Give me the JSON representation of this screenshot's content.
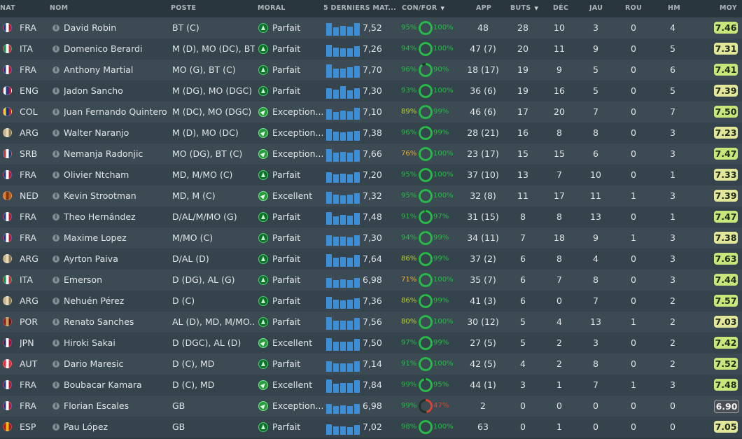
{
  "columns": {
    "nat": "NAT",
    "nom": "NOM",
    "poste": "POSTE",
    "moral": "MORAL",
    "form": "5 DERNIERS MAT...",
    "confor": "CON/FOR",
    "app": "APP",
    "buts": "BUTS",
    "dec": "DÉC",
    "jau": "JAU",
    "rou": "ROU",
    "hm": "HM",
    "moy": "MOY"
  },
  "colors": {
    "high": "#2bb84b",
    "mid": "#b8cf3a",
    "low": "#e2b13a",
    "bad": "#d94535",
    "bar": "#3c8ed6",
    "moy_high": "#c7e77a",
    "moy_mid": "#e3e79a",
    "moy_low": "#d7d9b9"
  },
  "icons": {
    "info": "info-icon",
    "morale": "morale-arrow-icon",
    "sort": "sort-desc-icon",
    "ring": "progress-ring-icon"
  },
  "players": [
    {
      "nat": "FRA",
      "name": "David Robin",
      "pos": "BT (C)",
      "moral": "Parfait",
      "moral_type": "up",
      "form": "7,52",
      "form_bars": [
        0.8,
        0.55,
        0.65,
        0.6,
        0.8
      ],
      "con": "95%",
      "for": "100%",
      "con_val": 95,
      "for_val": 100,
      "app": "48",
      "buts": "28",
      "dec": "10",
      "jau": "3",
      "rou": "0",
      "hm": "4",
      "moy": "7.46",
      "flag": [
        "#1a3c8f",
        "#ffffff",
        "#c8102e"
      ]
    },
    {
      "nat": "ITA",
      "name": "Domenico Berardi",
      "pos": "M (D), MO (DC), BT...",
      "moral": "Parfait",
      "moral_type": "up",
      "form": "7,26",
      "form_bars": [
        0.75,
        0.6,
        0.55,
        0.55,
        0.7
      ],
      "con": "94%",
      "for": "100%",
      "con_val": 94,
      "for_val": 100,
      "app": "47 (7)",
      "buts": "20",
      "dec": "11",
      "jau": "9",
      "rou": "0",
      "hm": "5",
      "moy": "7.31",
      "flag": [
        "#009246",
        "#ffffff",
        "#ce2b37"
      ]
    },
    {
      "nat": "FRA",
      "name": "Anthony Martial",
      "pos": "MO (G), BT (C)",
      "moral": "Parfait",
      "moral_type": "up",
      "form": "7,70",
      "form_bars": [
        0.85,
        0.6,
        0.6,
        0.7,
        0.75
      ],
      "con": "96%",
      "for": "90%",
      "con_val": 96,
      "for_val": 90,
      "app": "18 (17)",
      "buts": "19",
      "dec": "9",
      "jau": "5",
      "rou": "0",
      "hm": "6",
      "moy": "7.41",
      "flag": [
        "#1a3c8f",
        "#ffffff",
        "#c8102e"
      ]
    },
    {
      "nat": "ENG",
      "name": "Jadon Sancho",
      "pos": "M (DG), MO (DGC)",
      "moral": "Parfait",
      "moral_type": "up",
      "form": "7,30",
      "form_bars": [
        0.7,
        0.6,
        0.8,
        0.55,
        0.7
      ],
      "con": "93%",
      "for": "100%",
      "con_val": 93,
      "for_val": 100,
      "app": "36 (6)",
      "buts": "19",
      "dec": "16",
      "jau": "5",
      "rou": "0",
      "hm": "5",
      "moy": "7.39",
      "flag": [
        "#ffffff",
        "#1a3c8f",
        "#c8102e"
      ]
    },
    {
      "nat": "COL",
      "name": "Juan Fernando Quintero",
      "pos": "M (DC), MO (DGC)",
      "moral": "Exception...",
      "moral_type": "exc",
      "form": "7,10",
      "form_bars": [
        0.7,
        0.5,
        0.6,
        0.55,
        0.75
      ],
      "con": "89%",
      "for": "99%",
      "con_val": 89,
      "for_val": 99,
      "app": "46 (6)",
      "buts": "17",
      "dec": "20",
      "jau": "7",
      "rou": "0",
      "hm": "7",
      "moy": "7.50",
      "flag": [
        "#fcd116",
        "#003893",
        "#ce1126"
      ]
    },
    {
      "nat": "ARG",
      "name": "Walter Naranjo",
      "pos": "M (D), MO (DC)",
      "moral": "Exception...",
      "moral_type": "exc",
      "form": "7,38",
      "form_bars": [
        0.75,
        0.6,
        0.55,
        0.6,
        0.65
      ],
      "con": "96%",
      "for": "99%",
      "con_val": 96,
      "for_val": 99,
      "app": "28 (21)",
      "buts": "16",
      "dec": "8",
      "jau": "8",
      "rou": "0",
      "hm": "3",
      "moy": "7.23",
      "flag": [
        "#c9b48a",
        "#e6d9b8",
        "#8a7650"
      ]
    },
    {
      "nat": "SRB",
      "name": "Nemanja Radonjic",
      "pos": "MO (DG), BT (C)",
      "moral": "Exception...",
      "moral_type": "exc",
      "form": "7,66",
      "form_bars": [
        0.8,
        0.6,
        0.65,
        0.6,
        0.75
      ],
      "con": "76%",
      "for": "100%",
      "con_val": 76,
      "for_val": 100,
      "app": "23 (17)",
      "buts": "15",
      "dec": "15",
      "jau": "6",
      "rou": "0",
      "hm": "3",
      "moy": "7.47",
      "flag": [
        "#c6363c",
        "#ffffff",
        "#0c4076"
      ]
    },
    {
      "nat": "FRA",
      "name": "Olivier Ntcham",
      "pos": "MD, M/MO (C)",
      "moral": "Parfait",
      "moral_type": "up",
      "form": "7,20",
      "form_bars": [
        0.7,
        0.55,
        0.6,
        0.55,
        0.7
      ],
      "con": "95%",
      "for": "100%",
      "con_val": 95,
      "for_val": 100,
      "app": "37 (10)",
      "buts": "13",
      "dec": "7",
      "jau": "10",
      "rou": "0",
      "hm": "1",
      "moy": "7.33",
      "flag": [
        "#1a3c8f",
        "#ffffff",
        "#c8102e"
      ]
    },
    {
      "nat": "NED",
      "name": "Kevin Strootman",
      "pos": "MD, M (C)",
      "moral": "Excellent",
      "moral_type": "exc",
      "form": "7,32",
      "form_bars": [
        0.75,
        0.6,
        0.55,
        0.6,
        0.7
      ],
      "con": "95%",
      "for": "100%",
      "con_val": 95,
      "for_val": 100,
      "app": "32 (8)",
      "buts": "11",
      "dec": "17",
      "jau": "11",
      "rou": "1",
      "hm": "3",
      "moy": "7.39",
      "flag": [
        "#e07a24",
        "#7a3a10",
        "#c05a15"
      ]
    },
    {
      "nat": "FRA",
      "name": "Theo Hernández",
      "pos": "D/AL/M/MO (G)",
      "moral": "Parfait",
      "moral_type": "up",
      "form": "7,48",
      "form_bars": [
        0.8,
        0.55,
        0.65,
        0.6,
        0.75
      ],
      "con": "91%",
      "for": "97%",
      "con_val": 91,
      "for_val": 97,
      "app": "31 (15)",
      "buts": "8",
      "dec": "8",
      "jau": "13",
      "rou": "0",
      "hm": "1",
      "moy": "7.47",
      "flag": [
        "#1a3c8f",
        "#ffffff",
        "#c8102e"
      ]
    },
    {
      "nat": "FRA",
      "name": "Maxime Lopez",
      "pos": "M/MO (C)",
      "moral": "Parfait",
      "moral_type": "up",
      "form": "7,30",
      "form_bars": [
        0.7,
        0.6,
        0.6,
        0.55,
        0.7
      ],
      "con": "94%",
      "for": "99%",
      "con_val": 94,
      "for_val": 99,
      "app": "34 (11)",
      "buts": "7",
      "dec": "18",
      "jau": "9",
      "rou": "1",
      "hm": "3",
      "moy": "7.38",
      "flag": [
        "#1a3c8f",
        "#ffffff",
        "#c8102e"
      ]
    },
    {
      "nat": "ARG",
      "name": "Ayrton Paiva",
      "pos": "D/AL (D)",
      "moral": "Parfait",
      "moral_type": "up",
      "form": "7,64",
      "form_bars": [
        0.8,
        0.6,
        0.65,
        0.6,
        0.75
      ],
      "con": "86%",
      "for": "99%",
      "con_val": 86,
      "for_val": 99,
      "app": "37 (2)",
      "buts": "6",
      "dec": "8",
      "jau": "4",
      "rou": "0",
      "hm": "3",
      "moy": "7.63",
      "flag": [
        "#c9b48a",
        "#e6d9b8",
        "#8a7650"
      ]
    },
    {
      "nat": "ITA",
      "name": "Emerson",
      "pos": "D (DG), AL (G)",
      "moral": "Parfait",
      "moral_type": "up",
      "form": "6,98",
      "form_bars": [
        0.65,
        0.5,
        0.55,
        0.5,
        0.65
      ],
      "con": "71%",
      "for": "100%",
      "con_val": 71,
      "for_val": 100,
      "app": "35 (7)",
      "buts": "6",
      "dec": "7",
      "jau": "8",
      "rou": "0",
      "hm": "3",
      "moy": "7.44",
      "flag": [
        "#009246",
        "#ffffff",
        "#ce2b37"
      ]
    },
    {
      "nat": "ARG",
      "name": "Nehuén Pérez",
      "pos": "D (C)",
      "moral": "Parfait",
      "moral_type": "up",
      "form": "7,36",
      "form_bars": [
        0.75,
        0.6,
        0.55,
        0.6,
        0.7
      ],
      "con": "86%",
      "for": "99%",
      "con_val": 86,
      "for_val": 99,
      "app": "41 (3)",
      "buts": "6",
      "dec": "0",
      "jau": "7",
      "rou": "0",
      "hm": "2",
      "moy": "7.57",
      "flag": [
        "#c9b48a",
        "#e6d9b8",
        "#8a7650"
      ]
    },
    {
      "nat": "POR",
      "name": "Renato Sanches",
      "pos": "AL (D), MD, M/MO...",
      "moral": "Parfait",
      "moral_type": "up",
      "form": "7,56",
      "form_bars": [
        0.8,
        0.6,
        0.6,
        0.6,
        0.75
      ],
      "con": "80%",
      "for": "100%",
      "con_val": 80,
      "for_val": 100,
      "app": "30 (12)",
      "buts": "5",
      "dec": "4",
      "jau": "13",
      "rou": "1",
      "hm": "2",
      "moy": "7.03",
      "flag": [
        "#8b1f1f",
        "#c8a25a",
        "#6b1212"
      ]
    },
    {
      "nat": "JPN",
      "name": "Hiroki Sakai",
      "pos": "D (DGC), AL (D)",
      "moral": "Excellent",
      "moral_type": "exc",
      "form": "7,50",
      "form_bars": [
        0.8,
        0.6,
        0.6,
        0.6,
        0.75
      ],
      "con": "97%",
      "for": "99%",
      "con_val": 97,
      "for_val": 99,
      "app": "27 (5)",
      "buts": "5",
      "dec": "2",
      "jau": "3",
      "rou": "0",
      "hm": "2",
      "moy": "7.42",
      "flag": [
        "#1a2a6c",
        "#ffffff",
        "#bc002d"
      ]
    },
    {
      "nat": "AUT",
      "name": "Dario Maresic",
      "pos": "D (C), MD",
      "moral": "Parfait",
      "moral_type": "up",
      "form": "7,14",
      "form_bars": [
        0.7,
        0.55,
        0.55,
        0.55,
        0.7
      ],
      "con": "91%",
      "for": "100%",
      "con_val": 91,
      "for_val": 100,
      "app": "42 (5)",
      "buts": "4",
      "dec": "2",
      "jau": "8",
      "rou": "0",
      "hm": "2",
      "moy": "7.52",
      "flag": [
        "#ed2939",
        "#ffffff",
        "#ed2939"
      ]
    },
    {
      "nat": "FRA",
      "name": "Boubacar Kamara",
      "pos": "D (C), MD",
      "moral": "Excellent",
      "moral_type": "exc",
      "form": "7,84",
      "form_bars": [
        0.85,
        0.6,
        0.65,
        0.65,
        0.8
      ],
      "con": "99%",
      "for": "95%",
      "con_val": 99,
      "for_val": 95,
      "app": "44 (1)",
      "buts": "3",
      "dec": "1",
      "jau": "7",
      "rou": "1",
      "hm": "3",
      "moy": "7.48",
      "flag": [
        "#1a3c8f",
        "#ffffff",
        "#c8102e"
      ]
    },
    {
      "nat": "FRA",
      "name": "Florian Escales",
      "pos": "GB",
      "moral": "Exception...",
      "moral_type": "exc",
      "form": "6,98",
      "form_bars": [
        0.65,
        0.5,
        0.55,
        0.5,
        0.65
      ],
      "con": "99%",
      "for": "47%",
      "con_val": 99,
      "for_val": 47,
      "app": "2",
      "buts": "0",
      "dec": "0",
      "jau": "0",
      "rou": "0",
      "hm": "0",
      "moy": "6.90",
      "flag": [
        "#1a3c8f",
        "#ffffff",
        "#c8102e"
      ]
    },
    {
      "nat": "ESP",
      "name": "Pau López",
      "pos": "GB",
      "moral": "Parfait",
      "moral_type": "up",
      "form": "7,02",
      "form_bars": [
        0.7,
        0.55,
        0.55,
        0.5,
        0.65
      ],
      "con": "98%",
      "for": "100%",
      "con_val": 98,
      "for_val": 100,
      "app": "63",
      "buts": "0",
      "dec": "1",
      "jau": "0",
      "rou": "0",
      "hm": "0",
      "moy": "7.05",
      "flag": [
        "#aa151b",
        "#f1bf00",
        "#aa151b"
      ]
    }
  ]
}
